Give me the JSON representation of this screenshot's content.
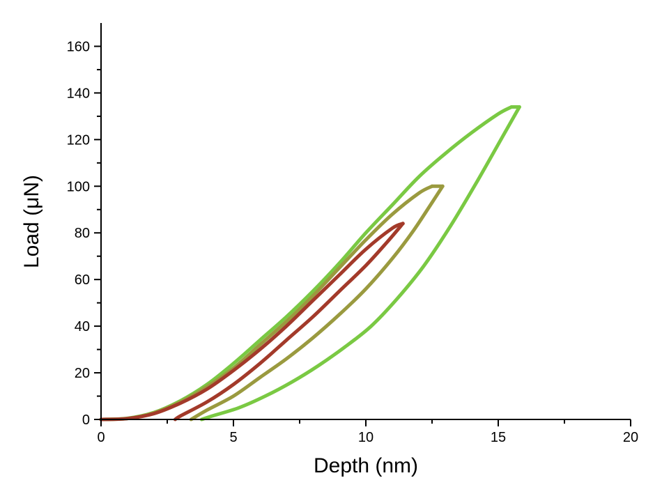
{
  "chart_data": {
    "type": "line",
    "title": "",
    "xlabel": "Depth (nm)",
    "ylabel": "Load (μN)",
    "xlim": [
      0,
      20
    ],
    "ylim": [
      0,
      170
    ],
    "x_ticks": [
      0,
      5,
      10,
      15,
      20
    ],
    "y_ticks": [
      0,
      20,
      40,
      60,
      80,
      100,
      120,
      140,
      160
    ],
    "grid": false,
    "legend": "none",
    "series": [
      {
        "color": "#7ac943",
        "loading": [
          [
            0,
            0
          ],
          [
            1,
            0.5
          ],
          [
            2,
            3
          ],
          [
            3,
            8
          ],
          [
            4,
            15
          ],
          [
            5,
            24
          ],
          [
            6,
            34
          ],
          [
            7,
            44
          ],
          [
            8,
            55
          ],
          [
            9,
            67
          ],
          [
            10,
            80
          ],
          [
            11,
            92
          ],
          [
            12,
            104
          ],
          [
            13,
            114
          ],
          [
            14,
            123
          ],
          [
            15,
            131
          ],
          [
            15.5,
            134
          ]
        ],
        "unloading": [
          [
            15.8,
            134
          ],
          [
            15.2,
            122
          ],
          [
            14.2,
            102
          ],
          [
            13.2,
            83
          ],
          [
            12.2,
            66
          ],
          [
            11.2,
            52
          ],
          [
            10.2,
            40
          ],
          [
            9.2,
            31
          ],
          [
            8.2,
            23
          ],
          [
            7.2,
            16
          ],
          [
            6.2,
            10
          ],
          [
            5.2,
            5
          ],
          [
            4.2,
            1.5
          ],
          [
            3.8,
            0
          ]
        ]
      },
      {
        "color": "#9a9a3f",
        "loading": [
          [
            0,
            0
          ],
          [
            1,
            0.4
          ],
          [
            2,
            2.8
          ],
          [
            3,
            7.5
          ],
          [
            4,
            14
          ],
          [
            5,
            22
          ],
          [
            6,
            32
          ],
          [
            7,
            42
          ],
          [
            8,
            53
          ],
          [
            9,
            65
          ],
          [
            10,
            77
          ],
          [
            11,
            88
          ],
          [
            12,
            97
          ],
          [
            12.5,
            100
          ]
        ],
        "unloading": [
          [
            12.9,
            100
          ],
          [
            12.5,
            93
          ],
          [
            11.8,
            81
          ],
          [
            11,
            69
          ],
          [
            10,
            56
          ],
          [
            9,
            45
          ],
          [
            8,
            35
          ],
          [
            7,
            26
          ],
          [
            6,
            18
          ],
          [
            5,
            10
          ],
          [
            4,
            4
          ],
          [
            3.4,
            0
          ]
        ]
      },
      {
        "color": "#a33a2a",
        "loading": [
          [
            0,
            0
          ],
          [
            1,
            0.4
          ],
          [
            2,
            2.5
          ],
          [
            3,
            7
          ],
          [
            4,
            13
          ],
          [
            5,
            21
          ],
          [
            6,
            30
          ],
          [
            7,
            40
          ],
          [
            8,
            51
          ],
          [
            9,
            62
          ],
          [
            10,
            73
          ],
          [
            11,
            82
          ],
          [
            11.4,
            84
          ]
        ],
        "unloading": [
          [
            11.4,
            84
          ],
          [
            10.8,
            76
          ],
          [
            10,
            66
          ],
          [
            9,
            55
          ],
          [
            8,
            44
          ],
          [
            7,
            34
          ],
          [
            6,
            24
          ],
          [
            5,
            15
          ],
          [
            4,
            7.5
          ],
          [
            3,
            1.5
          ],
          [
            2.8,
            0
          ]
        ]
      }
    ]
  }
}
